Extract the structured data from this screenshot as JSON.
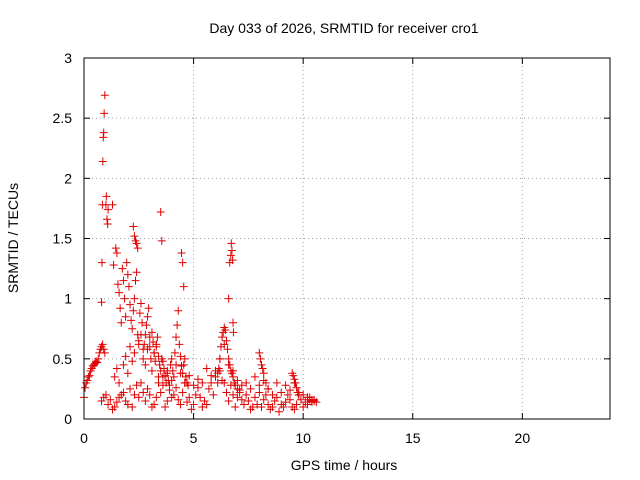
{
  "chart_data": {
    "type": "scatter",
    "title": "Day 033 of 2026, SRMTID for receiver cro1",
    "xlabel": "GPS time / hours",
    "ylabel": "SRMTID / TECUs",
    "xlim": [
      0,
      24
    ],
    "ylim": [
      0,
      3
    ],
    "xticks": [
      0,
      5,
      10,
      15,
      20
    ],
    "xtick_labels": [
      "0",
      "5",
      "10",
      "15",
      "20"
    ],
    "yticks": [
      0,
      0.5,
      1,
      1.5,
      2,
      2.5,
      3
    ],
    "ytick_labels": [
      "0",
      "0.5",
      "1",
      "1.5",
      "2",
      "2.5",
      "3"
    ],
    "grid": true,
    "marker": "+",
    "color": "#e00000",
    "series": [
      {
        "name": "SRMTID",
        "x": [
          0.0,
          0.05,
          0.1,
          0.15,
          0.2,
          0.25,
          0.3,
          0.35,
          0.4,
          0.45,
          0.5,
          0.55,
          0.6,
          0.65,
          0.7,
          0.75,
          0.8,
          0.85,
          0.9,
          0.95,
          0.8,
          0.82,
          0.84,
          0.86,
          0.88,
          0.9,
          0.92,
          0.95,
          1.0,
          1.02,
          1.05,
          1.08,
          1.1,
          1.3,
          1.35,
          0.8,
          0.9,
          1.0,
          1.1,
          1.2,
          1.3,
          1.4,
          1.5,
          1.6,
          1.7,
          1.8,
          1.9,
          2.0,
          2.1,
          2.2,
          2.3,
          2.4,
          2.5,
          2.6,
          2.7,
          2.8,
          2.9,
          3.0,
          3.1,
          3.2,
          3.3,
          3.4,
          3.5,
          3.6,
          3.7,
          3.8,
          3.9,
          4.0,
          4.1,
          4.2,
          4.3,
          4.4,
          4.5,
          4.6,
          4.7,
          4.8,
          4.9,
          5.0,
          5.1,
          5.2,
          5.3,
          5.4,
          5.5,
          5.6,
          5.7,
          5.8,
          5.9,
          6.0,
          6.1,
          6.2,
          6.3,
          6.4,
          6.5,
          6.6,
          6.7,
          6.8,
          6.9,
          7.0,
          7.1,
          7.2,
          7.3,
          7.4,
          7.5,
          7.6,
          7.7,
          7.8,
          7.9,
          8.0,
          8.1,
          8.2,
          8.3,
          8.4,
          8.5,
          8.6,
          8.7,
          8.8,
          8.9,
          9.0,
          9.1,
          9.2,
          9.3,
          9.4,
          9.5,
          9.6,
          9.7,
          9.8,
          9.9,
          10.0,
          10.1,
          10.2,
          10.3,
          10.4,
          10.5,
          10.6,
          1.4,
          1.5,
          1.6,
          1.8,
          1.9,
          2.0,
          2.1,
          2.2,
          2.3,
          2.5,
          2.6,
          2.7,
          2.8,
          2.9,
          3.0,
          3.1,
          3.2,
          3.3,
          3.4,
          3.6,
          3.8,
          4.0,
          4.2,
          4.4,
          4.6,
          4.8,
          5.0,
          5.2,
          5.4,
          5.6,
          5.8,
          6.0,
          6.2,
          6.4,
          6.6,
          6.8,
          7.0,
          7.2,
          7.4,
          7.6,
          7.8,
          8.0,
          8.2,
          8.4,
          8.6,
          8.8,
          9.0,
          9.2,
          9.4,
          9.6,
          9.8,
          10.0,
          10.2,
          10.4,
          1.45,
          1.5,
          1.55,
          1.6,
          1.65,
          1.7,
          1.75,
          1.8,
          1.85,
          1.9,
          1.95,
          2.0,
          2.05,
          2.1,
          2.15,
          2.2,
          2.25,
          2.3,
          2.35,
          2.4,
          2.45,
          2.5,
          2.55,
          2.6,
          2.65,
          2.7,
          2.75,
          2.8,
          2.85,
          2.9,
          2.95,
          3.0,
          3.05,
          3.1,
          3.15,
          3.2,
          3.25,
          3.3,
          3.35,
          3.4,
          3.45,
          3.5,
          3.55,
          3.6,
          3.65,
          3.7,
          3.75,
          3.8,
          3.85,
          3.9,
          3.95,
          4.0,
          4.05,
          4.1,
          4.15,
          4.2,
          4.25,
          4.3,
          4.35,
          4.4,
          4.45,
          4.5,
          4.55,
          4.6,
          4.65,
          4.7,
          4.75,
          2.25,
          2.3,
          2.35,
          2.4,
          2.45,
          3.5,
          3.55,
          4.45,
          4.5,
          4.55,
          6.1,
          6.15,
          6.2,
          6.25,
          6.3,
          6.35,
          6.4,
          6.45,
          6.5,
          6.55,
          6.6,
          6.65,
          6.7,
          6.75,
          6.8,
          6.85,
          6.9,
          7.0,
          7.1,
          6.6,
          6.65,
          6.7,
          6.72,
          6.75,
          6.78,
          6.8,
          6.82,
          8.0,
          8.05,
          8.1,
          8.15,
          8.2,
          8.3,
          8.4,
          9.5,
          9.55,
          9.6,
          9.65,
          9.7,
          9.75,
          9.8,
          10.2,
          10.3,
          10.4,
          10.5
        ],
        "y": [
          0.18,
          0.26,
          0.3,
          0.32,
          0.35,
          0.36,
          0.4,
          0.42,
          0.44,
          0.45,
          0.46,
          0.48,
          0.47,
          0.5,
          0.55,
          0.58,
          0.6,
          0.62,
          0.58,
          0.55,
          0.97,
          1.3,
          1.78,
          2.14,
          2.34,
          2.38,
          2.54,
          2.69,
          1.78,
          1.85,
          1.66,
          1.62,
          1.74,
          1.78,
          1.28,
          0.15,
          0.18,
          0.2,
          0.12,
          0.16,
          0.08,
          0.1,
          0.14,
          0.18,
          0.2,
          0.22,
          0.15,
          0.12,
          0.25,
          0.1,
          0.2,
          0.28,
          0.18,
          0.3,
          0.22,
          0.15,
          0.25,
          0.2,
          0.1,
          0.12,
          0.18,
          0.3,
          0.22,
          0.28,
          0.1,
          0.15,
          0.24,
          0.18,
          0.2,
          0.26,
          0.16,
          0.12,
          0.22,
          0.3,
          0.14,
          0.18,
          0.08,
          0.12,
          0.2,
          0.26,
          0.18,
          0.1,
          0.15,
          0.12,
          0.25,
          0.3,
          0.2,
          0.35,
          0.38,
          0.4,
          0.32,
          0.3,
          0.22,
          0.15,
          0.28,
          0.2,
          0.1,
          0.18,
          0.24,
          0.16,
          0.12,
          0.2,
          0.15,
          0.08,
          0.1,
          0.18,
          0.12,
          0.22,
          0.1,
          0.16,
          0.2,
          0.12,
          0.08,
          0.1,
          0.15,
          0.18,
          0.06,
          0.12,
          0.1,
          0.14,
          0.2,
          0.16,
          0.1,
          0.08,
          0.12,
          0.2,
          0.16,
          0.1,
          0.14,
          0.12,
          0.18,
          0.15,
          0.16,
          0.14,
          0.35,
          0.42,
          0.3,
          0.45,
          0.52,
          0.38,
          0.6,
          0.48,
          0.55,
          0.62,
          0.7,
          0.5,
          0.45,
          0.58,
          0.68,
          0.4,
          0.55,
          0.62,
          0.35,
          0.48,
          0.4,
          0.32,
          0.45,
          0.38,
          0.3,
          0.36,
          0.28,
          0.33,
          0.3,
          0.42,
          0.36,
          0.4,
          0.5,
          0.62,
          0.45,
          0.4,
          0.32,
          0.28,
          0.3,
          0.25,
          0.35,
          0.28,
          0.32,
          0.25,
          0.2,
          0.3,
          0.22,
          0.28,
          0.24,
          0.3,
          0.22,
          0.2,
          0.18,
          0.16,
          1.42,
          1.38,
          1.12,
          1.05,
          0.92,
          0.8,
          1.25,
          1.15,
          1.0,
          0.85,
          1.3,
          1.2,
          1.1,
          0.95,
          0.82,
          0.75,
          0.9,
          1.0,
          1.15,
          1.22,
          0.7,
          0.65,
          0.88,
          0.96,
          0.8,
          0.58,
          0.62,
          0.7,
          0.78,
          0.85,
          0.92,
          0.6,
          0.5,
          0.72,
          0.64,
          0.55,
          0.48,
          0.6,
          0.68,
          0.52,
          0.45,
          0.4,
          0.5,
          0.35,
          0.42,
          0.36,
          0.3,
          0.38,
          0.32,
          0.28,
          0.45,
          0.5,
          0.4,
          0.35,
          0.55,
          0.68,
          0.78,
          0.9,
          0.62,
          0.52,
          0.44,
          0.38,
          0.45,
          0.5,
          0.35,
          0.3,
          0.28,
          1.6,
          1.52,
          1.48,
          1.46,
          1.42,
          1.72,
          1.48,
          1.38,
          1.3,
          1.1,
          0.3,
          0.42,
          0.5,
          0.6,
          0.68,
          0.72,
          0.76,
          0.74,
          0.65,
          0.58,
          0.5,
          0.45,
          0.4,
          0.38,
          0.35,
          0.3,
          0.28,
          0.25,
          0.22,
          1.0,
          1.3,
          1.36,
          1.46,
          1.4,
          1.32,
          0.8,
          0.72,
          0.55,
          0.5,
          0.45,
          0.42,
          0.38,
          0.3,
          0.25,
          0.38,
          0.36,
          0.33,
          0.3,
          0.26,
          0.22,
          0.2,
          0.18,
          0.16,
          0.14,
          0.15
        ]
      }
    ]
  }
}
